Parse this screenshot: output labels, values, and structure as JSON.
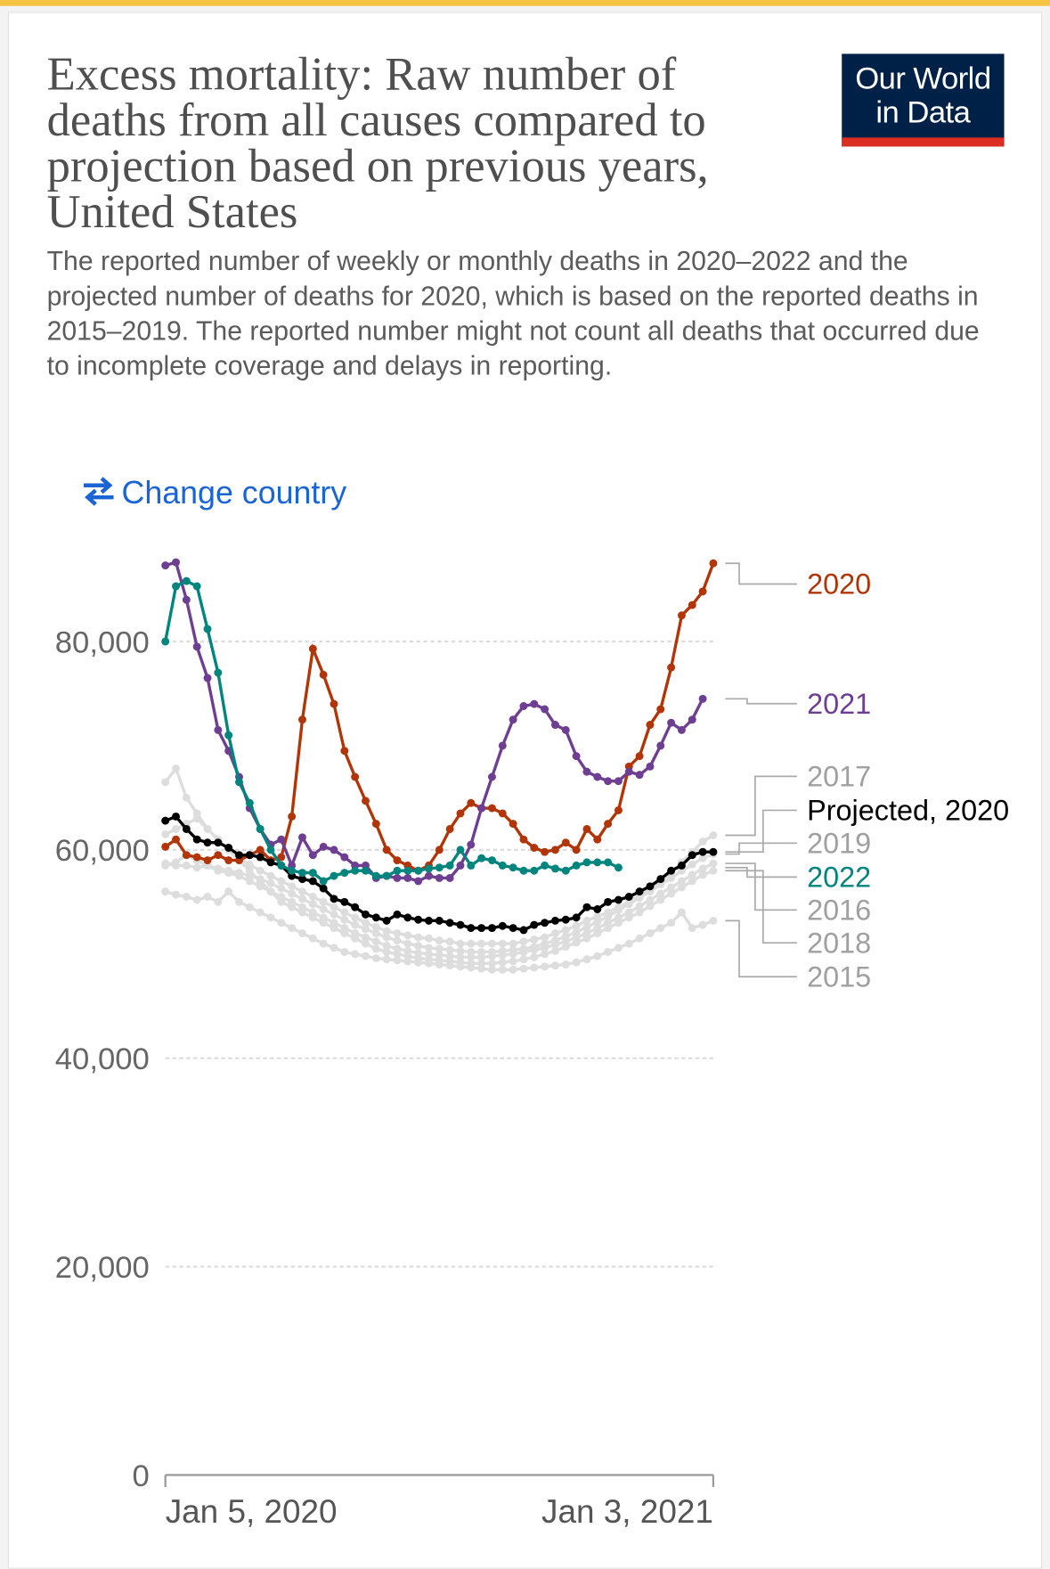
{
  "header": {
    "title": "Excess mortality: Raw number of deaths from all causes compared to projection based on previous years, United States",
    "subtitle": "The reported number of weekly or monthly deaths in 2020–2022 and the projected number of deaths for 2020, which is based on the reported deaths in 2015–2019. The reported number might not count all deaths that occurred due to incomplete coverage and delays in reporting.",
    "logo": "Our World in Data",
    "button": "Change country"
  },
  "chart_data": {
    "type": "line",
    "categories": [
      "Jan 5, 2020",
      null,
      null,
      null,
      null,
      null,
      null,
      null,
      null,
      null,
      null,
      null,
      null,
      null,
      null,
      null,
      null,
      null,
      null,
      null,
      null,
      null,
      null,
      null,
      null,
      null,
      null,
      null,
      null,
      null,
      null,
      null,
      null,
      null,
      null,
      null,
      null,
      null,
      null,
      null,
      null,
      null,
      null,
      null,
      null,
      null,
      null,
      null,
      null,
      null,
      null,
      null,
      "Jan 3, 2021"
    ],
    "ylim": [
      0,
      88000
    ],
    "yticks": [
      0,
      {
        "value": 20000,
        "label": "20,000"
      },
      {
        "value": 40000,
        "label": "40,000"
      },
      {
        "value": 60000,
        "label": "60,000"
      },
      {
        "value": 80000,
        "label": "80,000"
      }
    ],
    "grid": true,
    "series": [
      {
        "name": "2020",
        "color": "#b13507",
        "values": [
          60300,
          61000,
          59500,
          59300,
          59000,
          59500,
          59000,
          59000,
          59500,
          60000,
          59000,
          59300,
          63200,
          72500,
          79300,
          76800,
          74000,
          69500,
          67000,
          64700,
          62500,
          60000,
          59000,
          58500,
          58000,
          58500,
          60000,
          62000,
          63500,
          64500,
          64000,
          64000,
          63500,
          62500,
          61000,
          60200,
          59800,
          60000,
          60700,
          60000,
          62000,
          61000,
          62500,
          63800,
          68000,
          69000,
          72000,
          73500,
          77500,
          82500,
          83500,
          84800,
          87500
        ]
      },
      {
        "name": "2021",
        "color": "#6d3e91",
        "values": [
          87300,
          87600,
          84000,
          79500,
          76500,
          71500,
          69500,
          67000,
          64000,
          62000,
          60500,
          61000,
          58500,
          61200,
          59500,
          60300,
          60000,
          59300,
          58500,
          58500,
          57300,
          57500,
          57300,
          57300,
          57000,
          57500,
          57300,
          57300,
          58500,
          60500,
          64000,
          67000,
          70000,
          72500,
          73800,
          74000,
          73500,
          72000,
          71500,
          69000,
          67500,
          67000,
          66600,
          66600,
          67500,
          67200,
          68000,
          70000,
          72200,
          71500,
          72500,
          74500,
          null
        ]
      },
      {
        "name": "2017",
        "color": "#dddddd",
        "values": [
          66500,
          67800,
          65000,
          63500,
          62000,
          61000,
          60000,
          59200,
          58600,
          58000,
          57500,
          57000,
          56500,
          56000,
          55500,
          55000,
          54500,
          54000,
          53500,
          53000,
          52600,
          52200,
          52000,
          51800,
          51600,
          51500,
          51300,
          51200,
          51000,
          51000,
          51000,
          51000,
          51000,
          51000,
          51200,
          51400,
          51600,
          52000,
          52300,
          52700,
          53200,
          53600,
          54000,
          54500,
          55000,
          55600,
          56200,
          57000,
          57800,
          58800,
          59800,
          60800,
          61400
        ]
      },
      {
        "name": "Projected, 2020",
        "color": "#000000",
        "values": [
          62800,
          63200,
          62000,
          61000,
          60700,
          60700,
          60200,
          59500,
          59500,
          59300,
          58800,
          58500,
          57500,
          57200,
          57000,
          56300,
          55300,
          55000,
          54500,
          53800,
          53500,
          53200,
          53800,
          53500,
          53300,
          53200,
          53200,
          53000,
          52800,
          52500,
          52500,
          52500,
          52700,
          52500,
          52300,
          52800,
          53000,
          53200,
          53300,
          53500,
          54500,
          54300,
          55000,
          55200,
          55500,
          56000,
          56500,
          57200,
          58000,
          58500,
          59500,
          59800,
          59800
        ]
      },
      {
        "name": "2019",
        "color": "#dddddd",
        "values": [
          58700,
          58500,
          58500,
          58300,
          58500,
          58200,
          58000,
          57800,
          57500,
          57200,
          56800,
          56300,
          55800,
          55300,
          54800,
          54300,
          53800,
          53300,
          52800,
          52400,
          52000,
          51600,
          51300,
          51000,
          50800,
          50600,
          50500,
          50400,
          50300,
          50200,
          50200,
          50200,
          50300,
          50400,
          50500,
          50700,
          51000,
          51300,
          51700,
          52100,
          52600,
          53100,
          53600,
          54200,
          54800,
          55400,
          56000,
          56700,
          57300,
          58000,
          58600,
          59200,
          59600
        ]
      },
      {
        "name": "2022",
        "color": "#00847e",
        "values": [
          80000,
          85300,
          85800,
          85300,
          81200,
          77000,
          71000,
          66500,
          64500,
          62000,
          60000,
          58500,
          58000,
          57800,
          57800,
          57000,
          57500,
          57800,
          58000,
          58000,
          57500,
          57500,
          58000,
          58000,
          58000,
          58200,
          58300,
          58500,
          60000,
          58500,
          59200,
          59000,
          58500,
          58300,
          58000,
          58000,
          58500,
          58200,
          58000,
          58500,
          58800,
          58800,
          58800,
          58300,
          null,
          null,
          null,
          null,
          null,
          null,
          null,
          null,
          null
        ]
      },
      {
        "name": "2016",
        "color": "#dddddd",
        "values": [
          58500,
          58800,
          59500,
          59000,
          58500,
          58000,
          57800,
          57500,
          57000,
          56500,
          56000,
          55500,
          55000,
          54500,
          54000,
          53500,
          53000,
          52500,
          52000,
          51600,
          51200,
          50800,
          50500,
          50300,
          50100,
          50000,
          49900,
          49800,
          49700,
          49700,
          49700,
          49800,
          49900,
          50000,
          50200,
          50400,
          50600,
          50900,
          51200,
          51600,
          52000,
          52500,
          53000,
          53500,
          54000,
          54600,
          55200,
          55800,
          56400,
          57000,
          57600,
          58200,
          58700
        ]
      },
      {
        "name": "2018",
        "color": "#dddddd",
        "values": [
          61500,
          62000,
          62500,
          63000,
          62000,
          61000,
          60000,
          59000,
          58000,
          57000,
          56000,
          55000,
          54500,
          54000,
          53500,
          53000,
          52500,
          52000,
          51500,
          51000,
          50500,
          50200,
          50000,
          49800,
          49600,
          49500,
          49400,
          49300,
          49200,
          49100,
          49100,
          49100,
          49200,
          49300,
          49500,
          49700,
          50000,
          50300,
          50700,
          51100,
          51500,
          52000,
          52500,
          53000,
          53500,
          54000,
          54600,
          55200,
          55800,
          56400,
          57000,
          57600,
          58000
        ]
      },
      {
        "name": "2015",
        "color": "#dddddd",
        "values": [
          56000,
          55700,
          55500,
          55200,
          55500,
          55000,
          56000,
          55000,
          54500,
          54000,
          53500,
          53000,
          52500,
          52000,
          51500,
          51000,
          50600,
          50200,
          50000,
          49800,
          49600,
          49500,
          49400,
          49300,
          49200,
          49100,
          49000,
          48900,
          48800,
          48700,
          48600,
          48500,
          48500,
          48500,
          48600,
          48700,
          48800,
          48900,
          49000,
          49200,
          49500,
          49800,
          50200,
          50600,
          51000,
          51500,
          52000,
          52500,
          53000,
          54000,
          52500,
          52800,
          53200
        ]
      }
    ]
  }
}
